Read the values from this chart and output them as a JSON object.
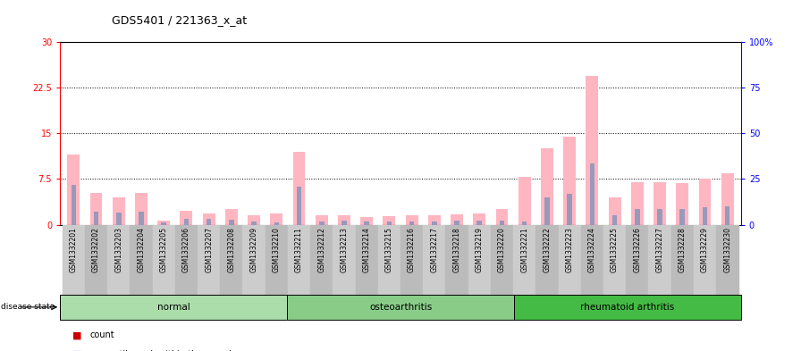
{
  "title": "GDS5401 / 221363_x_at",
  "samples": [
    "GSM1332201",
    "GSM1332202",
    "GSM1332203",
    "GSM1332204",
    "GSM1332205",
    "GSM1332206",
    "GSM1332207",
    "GSM1332208",
    "GSM1332209",
    "GSM1332210",
    "GSM1332211",
    "GSM1332212",
    "GSM1332213",
    "GSM1332214",
    "GSM1332215",
    "GSM1332216",
    "GSM1332217",
    "GSM1332218",
    "GSM1332219",
    "GSM1332220",
    "GSM1332221",
    "GSM1332222",
    "GSM1332223",
    "GSM1332224",
    "GSM1332225",
    "GSM1332226",
    "GSM1332227",
    "GSM1332228",
    "GSM1332229",
    "GSM1332230"
  ],
  "pink_values": [
    11.5,
    5.2,
    4.5,
    5.2,
    0.6,
    2.3,
    1.8,
    2.5,
    1.5,
    1.8,
    12.0,
    1.5,
    1.5,
    1.2,
    1.4,
    1.5,
    1.5,
    1.7,
    1.8,
    2.6,
    7.8,
    12.5,
    14.5,
    24.5,
    4.5,
    7.0,
    7.0,
    6.8,
    7.5,
    8.5
  ],
  "blue_values": [
    6.5,
    2.2,
    2.0,
    2.2,
    0.3,
    1.0,
    1.0,
    0.8,
    0.5,
    0.4,
    6.2,
    0.5,
    0.6,
    0.5,
    0.5,
    0.5,
    0.5,
    0.6,
    0.6,
    0.7,
    0.5,
    4.5,
    5.0,
    10.0,
    1.5,
    2.5,
    2.5,
    2.5,
    2.8,
    3.0
  ],
  "groups": [
    {
      "label": "normal",
      "start": 0,
      "end": 10
    },
    {
      "label": "osteoarthritis",
      "start": 10,
      "end": 20
    },
    {
      "label": "rheumatoid arthritis",
      "start": 20,
      "end": 30
    }
  ],
  "group_colors": [
    "#AADDAA",
    "#88CC88",
    "#44BB44"
  ],
  "ylim_left": [
    0,
    30
  ],
  "ylim_right": [
    0,
    100
  ],
  "yticks_left": [
    0,
    7.5,
    15,
    22.5,
    30
  ],
  "yticks_right": [
    0,
    25,
    50,
    75,
    100
  ],
  "ytick_labels_left": [
    "0",
    "7.5",
    "15",
    "22.5",
    "30"
  ],
  "ytick_labels_right": [
    "0",
    "25",
    "50",
    "75",
    "100%"
  ],
  "pink_color": "#FFB6C1",
  "blue_color": "#9999BB",
  "red_color": "#CC0000",
  "dark_blue_color": "#000099",
  "bar_width": 0.55,
  "disease_state_label": "disease state"
}
